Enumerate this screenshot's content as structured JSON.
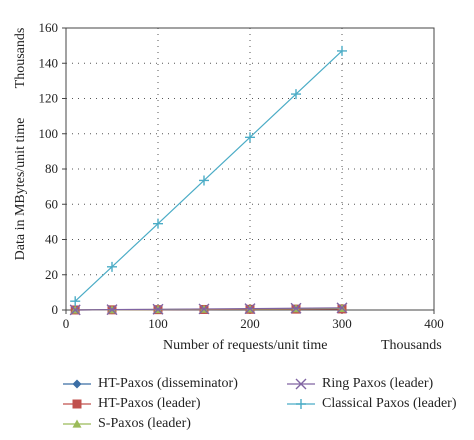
{
  "chart_data": {
    "type": "line",
    "title": "",
    "xlabel": "Number of requests/unit time",
    "ylabel": "Data in MBytes/unit time",
    "x_multiplier_label": "Thousands",
    "y_multiplier_label": "Thousands",
    "xlim": [
      0,
      400
    ],
    "ylim": [
      0,
      160
    ],
    "xticks": [
      0,
      100,
      200,
      300,
      400
    ],
    "yticks": [
      0,
      20,
      40,
      60,
      80,
      100,
      120,
      140,
      160
    ],
    "grid": true,
    "legend_position": "bottom",
    "x": [
      10,
      50,
      100,
      150,
      200,
      250,
      300
    ],
    "series": [
      {
        "name": "HT-Paxos (disseminator)",
        "color": "#3b6ea5",
        "marker": "diamond",
        "values": [
          0.02,
          0.1,
          0.2,
          0.3,
          0.4,
          0.5,
          0.6
        ]
      },
      {
        "name": "HT-Paxos (leader)",
        "color": "#c0504d",
        "marker": "square",
        "values": [
          0.02,
          0.1,
          0.2,
          0.3,
          0.4,
          0.5,
          0.6
        ]
      },
      {
        "name": "S-Paxos (leader)",
        "color": "#9bbb59",
        "marker": "triangle",
        "values": [
          0.03,
          0.15,
          0.3,
          0.45,
          0.6,
          0.75,
          0.9
        ]
      },
      {
        "name": "Ring Paxos (leader)",
        "color": "#8064a2",
        "marker": "x",
        "values": [
          0.04,
          0.2,
          0.4,
          0.6,
          0.8,
          1.0,
          1.2
        ]
      },
      {
        "name": "Classical Paxos (leader)",
        "color": "#4bacc6",
        "marker": "plus",
        "values": [
          5,
          24.5,
          49,
          73.5,
          98,
          122.5,
          147
        ]
      }
    ]
  }
}
